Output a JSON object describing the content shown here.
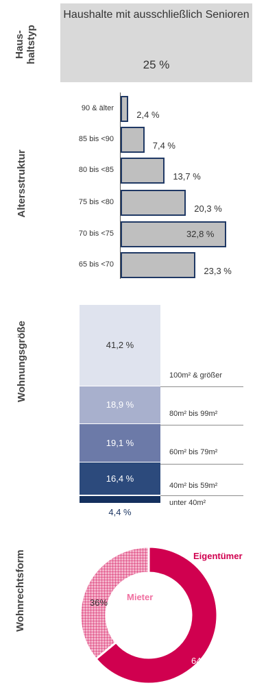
{
  "sections": {
    "haushaltstyp": "Haus-\nhaltstyp",
    "altersstruktur": "Altersstruktur",
    "wohnungsgroesse": "Wohnungsgröße",
    "wohnrechtsform": "Wohnrechtsform"
  },
  "household": {
    "title": "Haushalte mit ausschließlich Senioren",
    "value_label": "25 %",
    "value": 25
  },
  "colors": {
    "box_bg": "#d9d9d9",
    "bar_fill": "#bfbfbf",
    "bar_border": "#1f3864",
    "size_shades": [
      "#dfe3ee",
      "#a8b0cd",
      "#6c7aa8",
      "#2c4a7c",
      "#14305e"
    ],
    "owner": "#d0004f",
    "tenant_label": "#f06fa0"
  },
  "chart_data": [
    {
      "type": "bar",
      "orientation": "horizontal",
      "categories": [
        "90 & älter",
        "85 bis <90",
        "80 bis <85",
        "75 bis <80",
        "70 bis <75",
        "65 bis <70"
      ],
      "values": [
        2.4,
        7.4,
        13.7,
        20.3,
        32.8,
        23.3
      ],
      "value_labels": [
        "2,4 %",
        "7,4 %",
        "13,7 %",
        "20,3 %",
        "32,8 %",
        "23,3 %"
      ]
    },
    {
      "type": "bar",
      "stacked": true,
      "categories": [
        "100m² & größer",
        "80m² bis 99m²",
        "60m² bis 79m²",
        "40m² bis 59m²",
        "unter 40m²"
      ],
      "values": [
        41.2,
        18.9,
        19.1,
        16.4,
        4.4
      ],
      "value_labels": [
        "41,2 %",
        "18,9 %",
        "19,1 %",
        "16,4 %",
        "4,4 %"
      ]
    },
    {
      "type": "pie",
      "donut": true,
      "categories": [
        "Eigentümer",
        "Mieter"
      ],
      "values": [
        64,
        36
      ],
      "value_labels": [
        "64%",
        "36%"
      ]
    }
  ]
}
